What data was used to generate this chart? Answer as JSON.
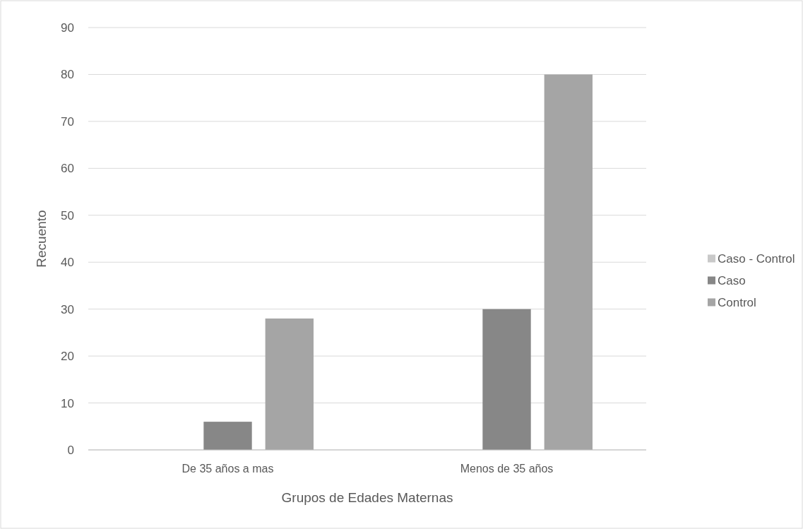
{
  "chart_data": {
    "type": "bar",
    "xlabel": "Grupos de Edades Maternas",
    "ylabel": "Recuento",
    "categories": [
      "De 35 años a mas",
      "Menos de 35 años"
    ],
    "series": [
      {
        "name": "Caso - Control",
        "color": "#c9c9c9",
        "values": [
          0,
          0
        ]
      },
      {
        "name": "Caso",
        "color": "#878787",
        "values": [
          6,
          30
        ]
      },
      {
        "name": "Control",
        "color": "#a5a5a5",
        "values": [
          28,
          80
        ]
      }
    ],
    "ylim": [
      0,
      90
    ],
    "yticks": [
      0,
      10,
      20,
      30,
      40,
      50,
      60,
      70,
      80,
      90
    ],
    "grid": "y",
    "legend": "right"
  }
}
